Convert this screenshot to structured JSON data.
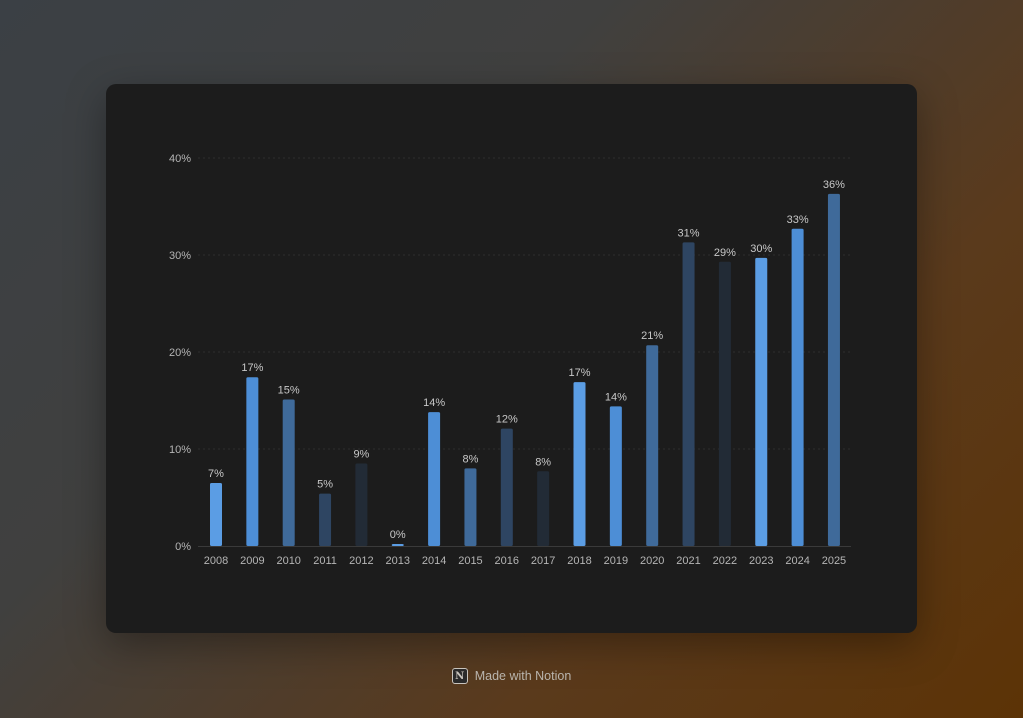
{
  "chart_data": {
    "type": "bar",
    "title": "",
    "xlabel": "",
    "ylabel": "",
    "ylim": [
      0,
      40
    ],
    "yticks": [
      0,
      10,
      20,
      30,
      40
    ],
    "ytick_format": "{v}%",
    "grid": true,
    "legend": "none",
    "categories": [
      "2008",
      "2009",
      "2010",
      "2011",
      "2012",
      "2013",
      "2014",
      "2015",
      "2016",
      "2017",
      "2018",
      "2019",
      "2020",
      "2021",
      "2022",
      "2023",
      "2024",
      "2025"
    ],
    "values": [
      6.5,
      17.4,
      15.1,
      5.4,
      8.5,
      0.2,
      13.8,
      8.0,
      12.1,
      7.7,
      16.9,
      14.4,
      20.7,
      31.3,
      29.3,
      29.7,
      32.7,
      36.3
    ],
    "data_labels": [
      "7%",
      "17%",
      "15%",
      "5%",
      "9%",
      "0%",
      "14%",
      "8%",
      "12%",
      "8%",
      "17%",
      "14%",
      "21%",
      "31%",
      "29%",
      "30%",
      "33%",
      "36%"
    ],
    "bar_colors": [
      "#5b9de4",
      "#4d8ed6",
      "#3f6a9a",
      "#2e4562",
      "#222b36",
      "#5b9de4",
      "#4d8ed6",
      "#3f6a9a",
      "#2e4562",
      "#222b36",
      "#5b9de4",
      "#4d8ed6",
      "#3f6a9a",
      "#2e4562",
      "#222b36",
      "#5b9de4",
      "#4d8ed6",
      "#3f6a9a"
    ]
  },
  "colors": {
    "card_background": "#1c1c1c",
    "axis_text": "#b5b5b5",
    "data_label": "#c8c8c8",
    "gridline": "#2e2e2e"
  },
  "footer": {
    "logo_letter": "N",
    "text": "Made with Notion",
    "logo_icon": "notion-icon"
  }
}
